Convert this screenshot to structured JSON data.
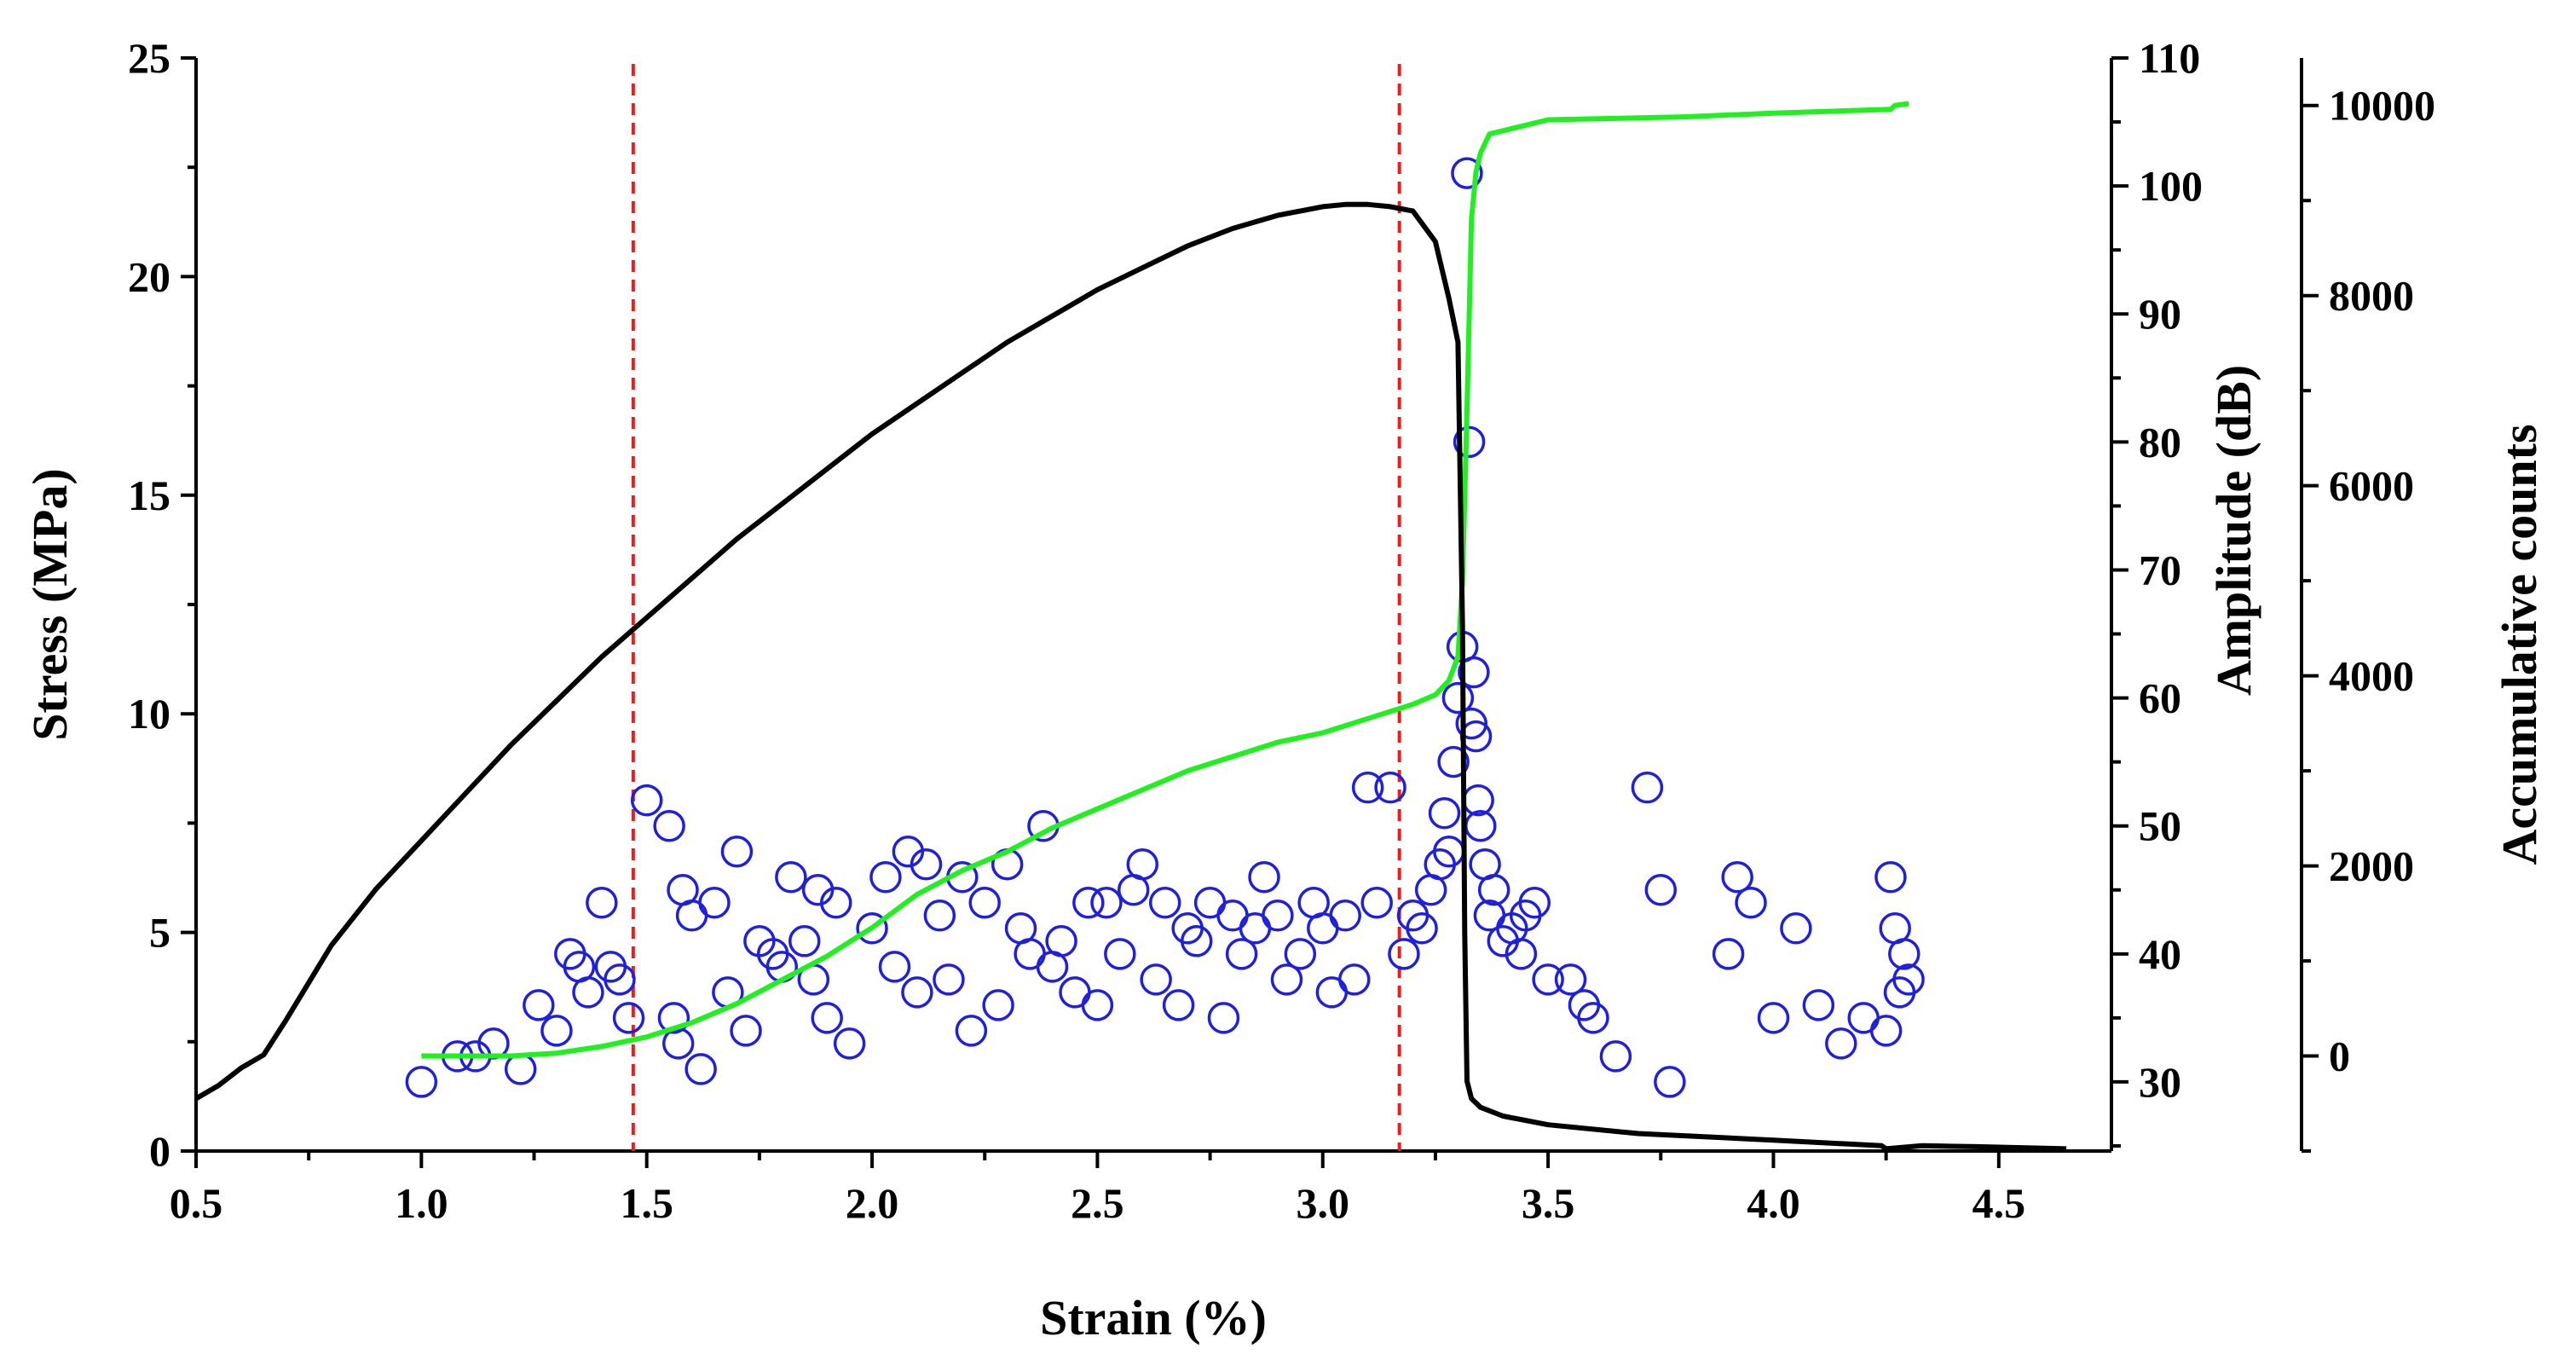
{
  "chart_data": {
    "type": "scatter+line",
    "xlabel": "Strain (%)",
    "xlim": [
      0.5,
      4.75
    ],
    "xticks": [
      0.5,
      1.0,
      1.5,
      2.0,
      2.5,
      3.0,
      3.5,
      4.0,
      4.5
    ],
    "x_tick_labels": [
      "0.5",
      "1.0",
      "1.5",
      "2.0",
      "2.5",
      "3.0",
      "3.5",
      "4.0",
      "4.5"
    ],
    "axes": {
      "stress": {
        "label": "Stress (MPa)",
        "range": [
          0,
          25
        ],
        "ticks": [
          0,
          5,
          10,
          15,
          20,
          25
        ],
        "tick_labels": [
          "0",
          "5",
          "10",
          "15",
          "20",
          "25"
        ]
      },
      "amplitude": {
        "label": "Amplitude (dB)",
        "range": [
          24.6,
          110
        ],
        "ticks": [
          30,
          40,
          50,
          60,
          70,
          80,
          90,
          100,
          110
        ],
        "tick_labels": [
          "30",
          "40",
          "50",
          "60",
          "70",
          "80",
          "90",
          "100",
          "110"
        ]
      },
      "counts": {
        "label": "Accumulative counts",
        "range": [
          -1000,
          10500
        ],
        "ticks": [
          0,
          2000,
          4000,
          6000,
          8000,
          10000
        ],
        "tick_labels": [
          "0",
          "2000",
          "4000",
          "6000",
          "8000",
          "10000"
        ]
      }
    },
    "vlines": [
      1.47,
      3.17
    ],
    "colors": {
      "stress": "#000000",
      "counts": "#22ee22",
      "amplitude": "#1f1fe0",
      "vline": "#ee1c1c"
    },
    "series": [
      {
        "name": "Stress",
        "axis": "stress",
        "x": [
          0.5,
          0.55,
          0.6,
          0.65,
          0.7,
          0.8,
          0.9,
          1.0,
          1.1,
          1.2,
          1.3,
          1.4,
          1.5,
          1.6,
          1.7,
          1.8,
          1.9,
          2.0,
          2.1,
          2.2,
          2.3,
          2.4,
          2.5,
          2.6,
          2.7,
          2.8,
          2.9,
          3.0,
          3.05,
          3.1,
          3.15,
          3.2,
          3.25,
          3.28,
          3.3,
          3.31,
          3.315,
          3.32,
          3.33,
          3.35,
          3.4,
          3.5,
          3.7,
          4.0,
          4.24,
          4.25,
          4.33,
          4.45,
          4.65
        ],
        "y": [
          1.2,
          1.5,
          1.9,
          2.2,
          3.0,
          4.7,
          6.0,
          7.1,
          8.2,
          9.3,
          10.3,
          11.3,
          12.2,
          13.1,
          14.0,
          14.8,
          15.6,
          16.4,
          17.1,
          17.8,
          18.5,
          19.1,
          19.7,
          20.2,
          20.7,
          21.1,
          21.4,
          21.6,
          21.65,
          21.65,
          21.6,
          21.5,
          20.8,
          19.5,
          18.5,
          12.0,
          5.0,
          1.6,
          1.2,
          1.0,
          0.8,
          0.6,
          0.4,
          0.25,
          0.12,
          0.05,
          0.12,
          0.1,
          0.05
        ]
      },
      {
        "name": "Accumulative counts",
        "axis": "counts",
        "x": [
          1.0,
          1.1,
          1.2,
          1.3,
          1.4,
          1.5,
          1.6,
          1.7,
          1.8,
          1.9,
          2.0,
          2.1,
          2.2,
          2.3,
          2.4,
          2.5,
          2.6,
          2.7,
          2.8,
          2.9,
          3.0,
          3.1,
          3.2,
          3.25,
          3.28,
          3.3,
          3.31,
          3.32,
          3.33,
          3.34,
          3.35,
          3.37,
          3.5,
          3.8,
          4.0,
          4.2,
          4.26,
          4.27,
          4.3
        ],
        "y": [
          0,
          0,
          0,
          30,
          100,
          200,
          350,
          550,
          800,
          1050,
          1350,
          1700,
          1950,
          2150,
          2400,
          2600,
          2800,
          3000,
          3150,
          3300,
          3400,
          3550,
          3700,
          3800,
          3950,
          4200,
          5000,
          6800,
          8800,
          9300,
          9500,
          9700,
          9850,
          9880,
          9920,
          9950,
          9960,
          10000,
          10020
        ]
      },
      {
        "name": "Amplitude",
        "axis": "amplitude",
        "x": [
          1.0,
          1.08,
          1.12,
          1.16,
          1.22,
          1.26,
          1.3,
          1.33,
          1.35,
          1.37,
          1.4,
          1.42,
          1.44,
          1.46,
          1.5,
          1.55,
          1.56,
          1.57,
          1.58,
          1.6,
          1.62,
          1.65,
          1.68,
          1.7,
          1.72,
          1.75,
          1.78,
          1.8,
          1.82,
          1.85,
          1.87,
          1.88,
          1.9,
          1.92,
          1.95,
          2.0,
          2.03,
          2.05,
          2.08,
          2.1,
          2.12,
          2.15,
          2.17,
          2.2,
          2.22,
          2.25,
          2.28,
          2.3,
          2.33,
          2.35,
          2.38,
          2.4,
          2.42,
          2.45,
          2.48,
          2.5,
          2.52,
          2.55,
          2.58,
          2.6,
          2.63,
          2.65,
          2.68,
          2.7,
          2.72,
          2.75,
          2.78,
          2.8,
          2.82,
          2.85,
          2.87,
          2.9,
          2.92,
          2.95,
          2.98,
          3.0,
          3.02,
          3.05,
          3.07,
          3.1,
          3.12,
          3.15,
          3.18,
          3.2,
          3.22,
          3.24,
          3.26,
          3.27,
          3.28,
          3.29,
          3.3,
          3.31,
          3.32,
          3.325,
          3.33,
          3.335,
          3.34,
          3.345,
          3.35,
          3.36,
          3.37,
          3.38,
          3.4,
          3.42,
          3.44,
          3.45,
          3.47,
          3.5,
          3.55,
          3.58,
          3.6,
          3.65,
          3.72,
          3.75,
          3.77,
          3.9,
          3.92,
          3.95,
          4.0,
          4.05,
          4.1,
          4.15,
          4.2,
          4.25,
          4.26,
          4.27,
          4.28,
          4.29,
          4.3
        ],
        "y": [
          30,
          32,
          32,
          33,
          31,
          36,
          34,
          40,
          39,
          37,
          44,
          39,
          38,
          35,
          52,
          50,
          35,
          33,
          45,
          43,
          31,
          44,
          37,
          48,
          34,
          41,
          40,
          39,
          46,
          41,
          38,
          45,
          35,
          44,
          33,
          42,
          46,
          39,
          48,
          37,
          47,
          43,
          38,
          46,
          34,
          44,
          36,
          47,
          42,
          40,
          50,
          39,
          41,
          37,
          44,
          36,
          44,
          40,
          45,
          47,
          38,
          44,
          36,
          42,
          41,
          44,
          35,
          43,
          40,
          42,
          46,
          43,
          38,
          40,
          44,
          42,
          37,
          43,
          38,
          53,
          44,
          53,
          40,
          43,
          42,
          45,
          47,
          51,
          48,
          55,
          60,
          64,
          101,
          80,
          58,
          62,
          57,
          52,
          50,
          47,
          43,
          45,
          41,
          42,
          40,
          43,
          44,
          38,
          38,
          36,
          35,
          32,
          53,
          45,
          30,
          40,
          46,
          44,
          35,
          42,
          36,
          33,
          35,
          34,
          46,
          42,
          37,
          40,
          38
        ]
      }
    ]
  }
}
